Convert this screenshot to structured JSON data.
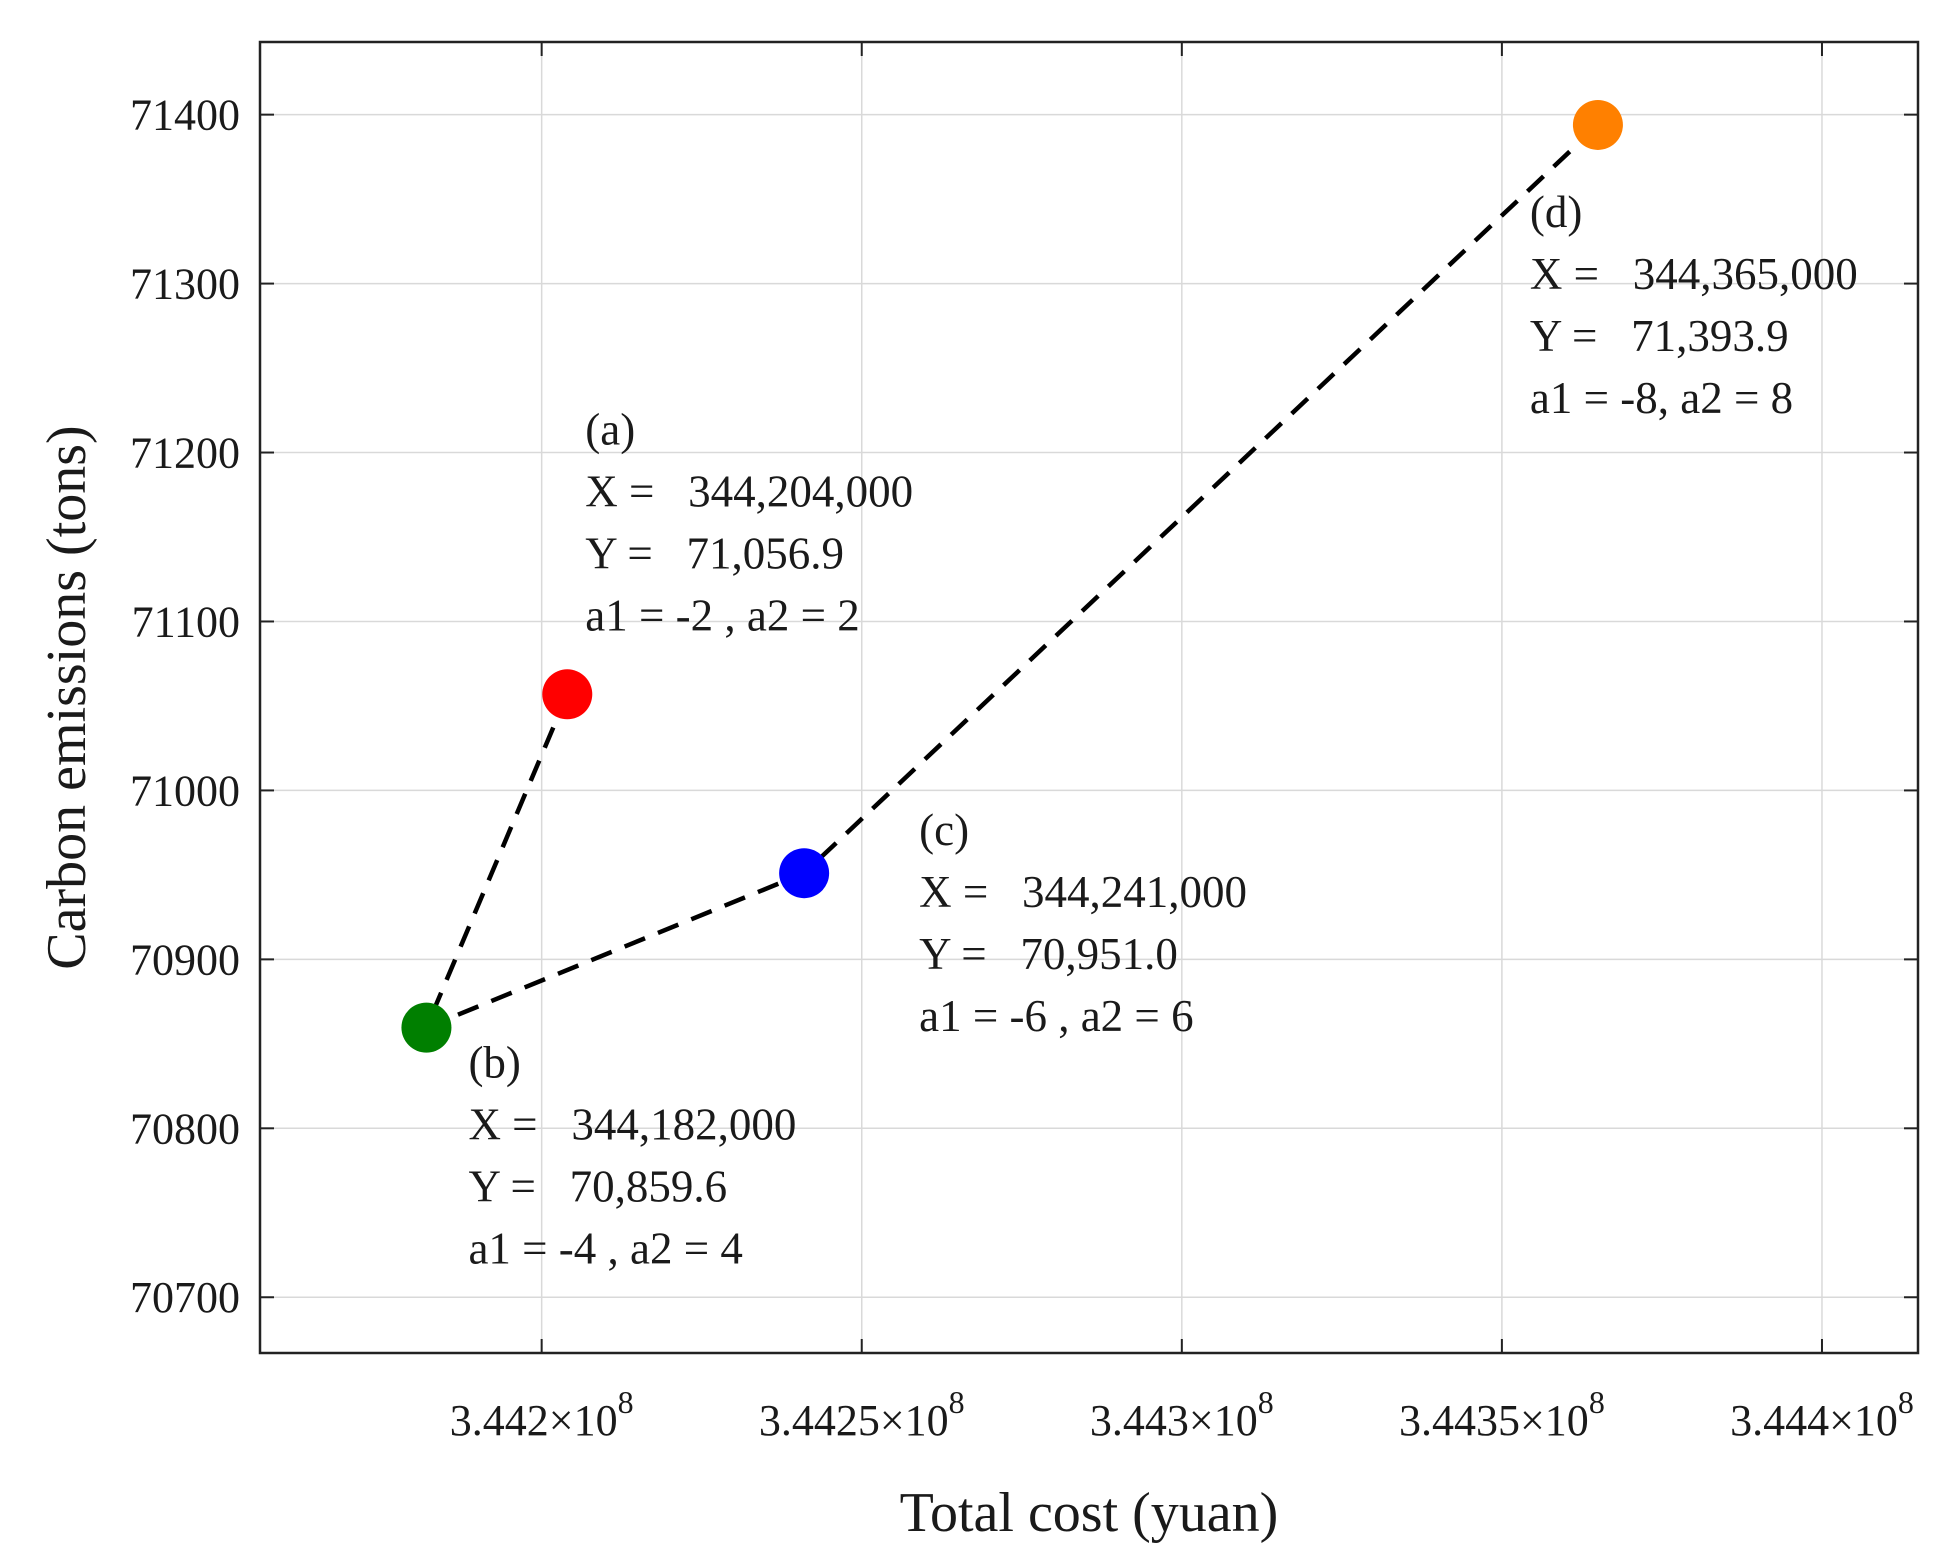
{
  "chart_data": {
    "type": "scatter",
    "xlabel": "Total cost (yuan)",
    "ylabel": "Carbon emissions (tons)",
    "xlim": [
      344156000,
      344415000
    ],
    "ylim": [
      70667,
      71443
    ],
    "grid": true,
    "x_ticks": [
      {
        "value": 344200000,
        "mantissa": "3.442",
        "exponent": "8"
      },
      {
        "value": 344250000,
        "mantissa": "3.4425",
        "exponent": "8"
      },
      {
        "value": 344300000,
        "mantissa": "3.443",
        "exponent": "8"
      },
      {
        "value": 344350000,
        "mantissa": "3.4435",
        "exponent": "8"
      },
      {
        "value": 344400000,
        "mantissa": "3.444",
        "exponent": "8"
      }
    ],
    "y_ticks": [
      70700,
      70800,
      70900,
      71000,
      71100,
      71200,
      71300,
      71400
    ],
    "points": [
      {
        "id": "a",
        "x": 344204000,
        "y": 71056.9,
        "color": "#ff0000",
        "lines": [
          "(a)",
          "X =   344,204,000",
          "Y =   71,056.9",
          "a1 = -2 , a2 = 2"
        ]
      },
      {
        "id": "b",
        "x": 344182000,
        "y": 70859.6,
        "color": "#007f00",
        "lines": [
          "(b)",
          "X =   344,182,000",
          "Y =   70,859.6",
          "a1 = -4 , a2 = 4"
        ]
      },
      {
        "id": "c",
        "x": 344241000,
        "y": 70951.0,
        "color": "#0000ff",
        "lines": [
          "(c)",
          "X =   344,241,000",
          "Y =   70,951.0",
          "a1 = -6 , a2 = 6"
        ]
      },
      {
        "id": "d",
        "x": 344365000,
        "y": 71393.9,
        "color": "#ff8000",
        "lines": [
          "(d)",
          "X =   344,365,000",
          "Y =   71,393.9",
          "a1 = -8, a2 = 8"
        ]
      }
    ],
    "path_order": [
      "a",
      "b",
      "c",
      "d"
    ],
    "path_style": "dashed"
  }
}
